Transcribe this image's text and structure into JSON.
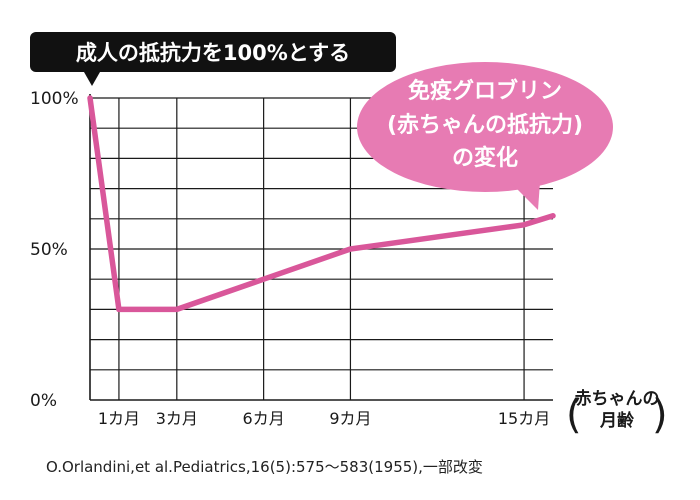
{
  "colors": {
    "line": "#d9579a",
    "callout_fill": "#e77bb3",
    "header_fill": "#111111",
    "grid": "#1a1a1a"
  },
  "chart_data": {
    "type": "line",
    "title": "成人の抵抗力を100%とする",
    "xlabel": "(赤ちゃんの月齢)",
    "xlabel_lines": [
      "赤ちゃんの",
      "月齢"
    ],
    "ylabel": "",
    "x_ticks": [
      "1カ月",
      "3カ月",
      "6カ月",
      "9カ月",
      "15カ月"
    ],
    "y_ticks": [
      "100%",
      "50%",
      "0%"
    ],
    "ylim": [
      0,
      100
    ],
    "xlim": [
      0,
      16
    ],
    "series": [
      {
        "name": "免疫グロブリン(赤ちゃんの抵抗力)の変化",
        "x": [
          0,
          1,
          3,
          6,
          9,
          15,
          16
        ],
        "y": [
          100,
          30,
          30,
          40,
          50,
          58,
          61
        ]
      }
    ],
    "annotation": {
      "lines": [
        "免疫グロブリン",
        "(赤ちゃんの抵抗力)",
        "の変化"
      ]
    },
    "grid": true
  },
  "citation": "O.Orlandini,et al.Pediatrics,16(5):575～583(1955),一部改変"
}
